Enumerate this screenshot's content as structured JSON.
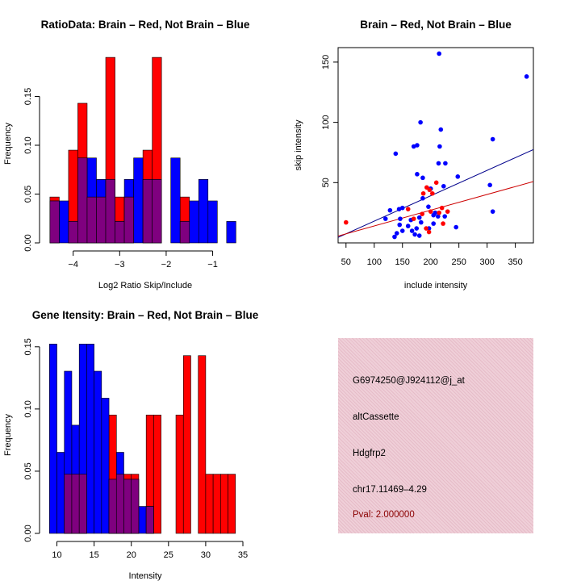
{
  "colors": {
    "red": "#ff0000",
    "blue": "#0000ff",
    "overlap": "#7f007f",
    "line_blue": "#00008b",
    "line_red": "#cc0000",
    "info_bg": "#efcfd8",
    "pval": "#8b0000"
  },
  "chart_data": [
    {
      "id": "ratio",
      "type": "bar",
      "title": "RatioData: Brain – Red, Not Brain – Blue",
      "xlabel": "Log2 Ratio Skip/Include",
      "ylabel": "Frequency",
      "xlim": [
        -4.55,
        -0.35
      ],
      "ylim": [
        0,
        0.2
      ],
      "xticks": [
        -4,
        -3,
        -2,
        -1
      ],
      "xtick_labels": [
        "−4",
        "−3",
        "−2",
        "−1"
      ],
      "yticks": [
        0.0,
        0.05,
        0.1,
        0.15
      ],
      "ytick_labels": [
        "0.00",
        "0.05",
        "0.10",
        "0.15"
      ],
      "series": [
        {
          "name": "Brain",
          "color": "red",
          "bins": [
            [
              -4.5,
              -4.3,
              0.047
            ],
            [
              -4.3,
              -4.1,
              0.0
            ],
            [
              -4.1,
              -3.9,
              0.095
            ],
            [
              -3.9,
              -3.7,
              0.143
            ],
            [
              -3.7,
              -3.5,
              0.047
            ],
            [
              -3.5,
              -3.3,
              0.047
            ],
            [
              -3.3,
              -3.1,
              0.19
            ],
            [
              -3.1,
              -2.9,
              0.047
            ],
            [
              -2.9,
              -2.7,
              0.047
            ],
            [
              -2.7,
              -2.5,
              0.0
            ],
            [
              -2.5,
              -2.3,
              0.095
            ],
            [
              -2.3,
              -2.1,
              0.19
            ],
            [
              -2.1,
              -1.9,
              0.0
            ],
            [
              -1.9,
              -1.7,
              0.0
            ],
            [
              -1.7,
              -1.5,
              0.047
            ]
          ]
        },
        {
          "name": "Not Brain",
          "color": "blue",
          "bins": [
            [
              -4.5,
              -4.3,
              0.043
            ],
            [
              -4.3,
              -4.1,
              0.043
            ],
            [
              -4.1,
              -3.9,
              0.022
            ],
            [
              -3.9,
              -3.7,
              0.087
            ],
            [
              -3.7,
              -3.5,
              0.087
            ],
            [
              -3.5,
              -3.3,
              0.065
            ],
            [
              -3.3,
              -3.1,
              0.065
            ],
            [
              -3.1,
              -2.9,
              0.022
            ],
            [
              -2.9,
              -2.7,
              0.065
            ],
            [
              -2.7,
              -2.5,
              0.087
            ],
            [
              -2.5,
              -2.3,
              0.065
            ],
            [
              -2.3,
              -2.1,
              0.065
            ],
            [
              -2.1,
              -1.9,
              0.0
            ],
            [
              -1.9,
              -1.7,
              0.087
            ],
            [
              -1.7,
              -1.5,
              0.022
            ],
            [
              -1.5,
              -1.3,
              0.043
            ],
            [
              -1.3,
              -1.1,
              0.065
            ],
            [
              -1.1,
              -0.9,
              0.043
            ],
            [
              -0.9,
              -0.7,
              0.0
            ],
            [
              -0.7,
              -0.5,
              0.022
            ]
          ]
        }
      ]
    },
    {
      "id": "scatter",
      "type": "scatter",
      "title": "Brain – Red, Not Brain – Blue",
      "xlabel": "include intensity",
      "ylabel": "skip intensity",
      "xlim": [
        36,
        382
      ],
      "ylim": [
        0,
        162
      ],
      "xticks": [
        50,
        100,
        150,
        200,
        250,
        300,
        350
      ],
      "xtick_labels": [
        "50",
        "100",
        "150",
        "200",
        "250",
        "300",
        "350"
      ],
      "yticks": [
        50,
        100,
        150
      ],
      "ytick_labels": [
        "50",
        "100",
        "150"
      ],
      "series": [
        {
          "name": "Not Brain",
          "color": "blue",
          "points": [
            [
              215,
              157
            ],
            [
              370,
              138
            ],
            [
              182,
              100
            ],
            [
              218,
              94
            ],
            [
              310,
              86
            ],
            [
              170,
              80
            ],
            [
              176,
              81
            ],
            [
              216,
              80
            ],
            [
              138,
              74
            ],
            [
              214,
              66
            ],
            [
              226,
              66
            ],
            [
              186,
              54
            ],
            [
              248,
              55
            ],
            [
              176,
              57
            ],
            [
              305,
              48
            ],
            [
              223,
              47
            ],
            [
              200,
              45
            ],
            [
              186,
              37
            ],
            [
              128,
              27
            ],
            [
              144,
              28
            ],
            [
              150,
              29
            ],
            [
              310,
              26
            ],
            [
              196,
              30
            ],
            [
              208,
              25
            ],
            [
              180,
              21
            ],
            [
              213,
              22
            ],
            [
              120,
              20
            ],
            [
              146,
              20
            ],
            [
              165,
              19
            ],
            [
              145,
              15
            ],
            [
              183,
              17
            ],
            [
              160,
              14
            ],
            [
              205,
              16
            ],
            [
              175,
              12
            ],
            [
              197,
              12
            ],
            [
              150,
              10
            ],
            [
              140,
              8
            ],
            [
              167,
              10
            ],
            [
              136,
              5
            ],
            [
              180,
              6
            ],
            [
              245,
              13
            ],
            [
              172,
              7
            ],
            [
              205,
              23
            ],
            [
              225,
              22
            ]
          ]
        },
        {
          "name": "Brain",
          "color": "red",
          "points": [
            [
              50,
              17
            ],
            [
              193,
              46
            ],
            [
              198,
              44
            ],
            [
              210,
              50
            ],
            [
              203,
              41
            ],
            [
              187,
              41
            ],
            [
              220,
              29
            ],
            [
              230,
              26
            ],
            [
              200,
              26
            ],
            [
              185,
              24
            ],
            [
              215,
              25
            ],
            [
              222,
              16
            ],
            [
              192,
              12
            ],
            [
              197,
              9
            ],
            [
              160,
              28
            ],
            [
              170,
              20
            ]
          ]
        }
      ],
      "fit_lines": [
        {
          "name": "Not Brain fit",
          "color": "line_blue",
          "intercept": -3.0,
          "slope": 0.2105
        },
        {
          "name": "Brain fit",
          "color": "line_red",
          "intercept": 1.0,
          "slope": 0.1306
        }
      ]
    },
    {
      "id": "gene",
      "type": "bar",
      "title": "Gene Itensity: Brain – Red, Not Brain – Blue",
      "xlabel": "Intensity",
      "ylabel": "Frequency",
      "xlim": [
        8.75,
        35.0
      ],
      "ylim": [
        0,
        0.157
      ],
      "xticks": [
        10,
        15,
        20,
        25,
        30,
        35
      ],
      "xtick_labels": [
        "10",
        "15",
        "20",
        "25",
        "30",
        "35"
      ],
      "yticks": [
        0.0,
        0.05,
        0.1,
        0.15
      ],
      "ytick_labels": [
        "0.00",
        "0.05",
        "0.10",
        "0.15"
      ],
      "series": [
        {
          "name": "Brain",
          "color": "red",
          "bins": [
            [
              11,
              12,
              0.0476
            ],
            [
              12,
              13,
              0.0476
            ],
            [
              13,
              14,
              0.0476
            ],
            [
              17,
              18,
              0.0952
            ],
            [
              18,
              19,
              0.0476
            ],
            [
              19,
              20,
              0.0476
            ],
            [
              20,
              21,
              0.0476
            ],
            [
              22,
              23,
              0.0952
            ],
            [
              23,
              24,
              0.0952
            ],
            [
              26,
              27,
              0.0952
            ],
            [
              27,
              28,
              0.1429
            ],
            [
              29,
              30,
              0.1429
            ],
            [
              30,
              31,
              0.0476
            ],
            [
              31,
              32,
              0.0476
            ],
            [
              32,
              33,
              0.0476
            ],
            [
              33,
              34,
              0.0476
            ]
          ]
        },
        {
          "name": "Not Brain",
          "color": "blue",
          "bins": [
            [
              9,
              10,
              0.1522
            ],
            [
              10,
              11,
              0.0652
            ],
            [
              11,
              12,
              0.1304
            ],
            [
              12,
              13,
              0.087
            ],
            [
              13,
              14,
              0.1522
            ],
            [
              14,
              15,
              0.1522
            ],
            [
              15,
              16,
              0.1304
            ],
            [
              16,
              17,
              0.1087
            ],
            [
              17,
              18,
              0.0435
            ],
            [
              18,
              19,
              0.0652
            ],
            [
              19,
              20,
              0.0435
            ],
            [
              20,
              21,
              0.0435
            ],
            [
              21,
              22,
              0.0217
            ],
            [
              22,
              23,
              0.0217
            ]
          ]
        }
      ]
    }
  ],
  "info_panel": {
    "probe": "G6974250@J924112@j_at",
    "type": "altCassette",
    "gene": "Hdgfrp2",
    "location": "chr17.11469–4.29",
    "pval": "Pval: 2.000000"
  }
}
